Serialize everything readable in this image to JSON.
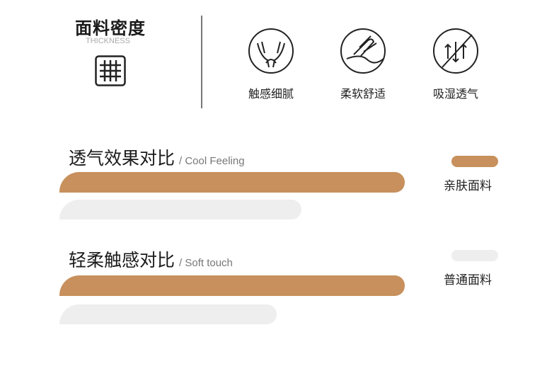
{
  "thickness": {
    "title": "面料密度",
    "subtitle": "THICKNESS",
    "icon": "grid-icon"
  },
  "features": [
    {
      "label": "触感细腻",
      "icon": "hands-icon"
    },
    {
      "label": "柔软舒适",
      "icon": "hand-touch-icon"
    },
    {
      "label": "吸湿透气",
      "icon": "airflow-arrows-icon"
    }
  ],
  "colors": {
    "primary": "#c7905c",
    "secondary": "#eeeeee"
  },
  "legend": [
    {
      "label": "亲肤面料",
      "color": "#c7905c"
    },
    {
      "label": "普通面料",
      "color": "#eeeeee"
    }
  ],
  "chart_data": {
    "type": "bar",
    "orientation": "horizontal",
    "categories": [
      {
        "title": "透气效果对比",
        "subtitle": "/ Cool Feeling"
      },
      {
        "title": "轻柔触感对比",
        "subtitle": "/ Soft touch"
      }
    ],
    "series": [
      {
        "name": "亲肤面料",
        "values": [
          100,
          100
        ]
      },
      {
        "name": "普通面料",
        "values": [
          70,
          63
        ]
      }
    ],
    "legend_position": "right",
    "grid": false
  }
}
